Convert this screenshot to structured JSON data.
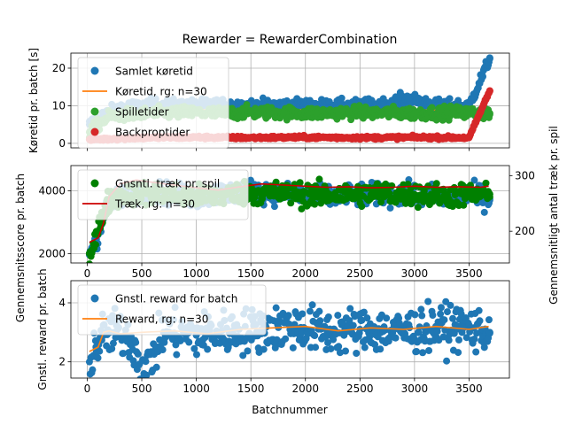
{
  "figure": {
    "suptitle": "Rewarder = RewarderCombination",
    "xlabel": "Batchnummer"
  },
  "chart_data": [
    {
      "type": "scatter",
      "ylabel": "Køretid pr. batch [s]",
      "xlim": [
        -150,
        3870
      ],
      "ylim": [
        -1.2,
        24
      ],
      "xticks": [
        0,
        500,
        1000,
        1500,
        2000,
        2500,
        3000,
        3500
      ],
      "yticks": [
        0,
        10,
        20
      ],
      "legend_position": "upper-left",
      "series": [
        {
          "name": "Samlet køretid",
          "kind": "scatter",
          "color": "#1f77b4",
          "x": [
            20,
            150,
            300,
            600,
            900,
            1200,
            1500,
            1800,
            2100,
            2400,
            2700,
            2950,
            3200,
            3500,
            3690
          ],
          "y": [
            5.0,
            7.5,
            9.5,
            10.2,
            10.0,
            10.3,
            10.0,
            10.2,
            10.1,
            10.0,
            10.3,
            12.0,
            10.1,
            10.0,
            22.5
          ]
        },
        {
          "name": "Køretid, rg: n=30",
          "kind": "line",
          "color": "#ff7f0e",
          "x": [
            20,
            100,
            200,
            300,
            500,
            1000,
            1500,
            2000,
            2500,
            3000,
            3500,
            3680
          ],
          "y": [
            4.0,
            6.0,
            8.0,
            8.5,
            8.8,
            8.9,
            8.8,
            8.9,
            8.8,
            8.9,
            8.8,
            8.9
          ]
        },
        {
          "name": "Spilletider",
          "kind": "scatter",
          "color": "#2ca02c",
          "x": [
            20,
            100,
            200,
            300,
            600,
            900,
            1200,
            1500,
            1800,
            2100,
            2400,
            2700,
            3000,
            3300,
            3600,
            3690
          ],
          "y": [
            3.0,
            5.0,
            7.0,
            7.5,
            8.0,
            8.2,
            8.0,
            8.3,
            8.1,
            8.0,
            8.2,
            8.1,
            8.0,
            8.2,
            8.1,
            8.0
          ]
        },
        {
          "name": "Backproptider",
          "kind": "scatter",
          "color": "#d62728",
          "x": [
            20,
            500,
            1000,
            1500,
            2000,
            2500,
            3000,
            3500,
            3690
          ],
          "y": [
            1.0,
            1.5,
            1.6,
            1.5,
            1.6,
            1.5,
            1.6,
            1.5,
            14.0
          ]
        }
      ]
    },
    {
      "type": "scatter",
      "ylabel": "Gennemsnitsscore pr. batch",
      "ylabel_right": "Gennemsnitligt antal træk pr. spil",
      "xlim": [
        -150,
        3870
      ],
      "ylim": [
        1700,
        4800
      ],
      "yticks": [
        2000,
        4000
      ],
      "ylim_right": [
        143,
        318
      ],
      "yticks_right": [
        200,
        300
      ],
      "legend_position": "upper-left",
      "series": [
        {
          "name": "",
          "kind": "scatter",
          "axis": "left",
          "color": "#1f77b4",
          "x": [
            20,
            60,
            100,
            150,
            200,
            300,
            500,
            800,
            1000,
            1200,
            1500,
            1800,
            2100,
            2400,
            2700,
            3000,
            3300,
            3600,
            3690
          ],
          "y": [
            2000,
            2300,
            2600,
            3200,
            3500,
            3800,
            4000,
            3900,
            3800,
            3900,
            4000,
            3900,
            3800,
            3850,
            3900,
            3850,
            3800,
            3850,
            3700
          ]
        },
        {
          "name": "Gnsntl. træk pr. spil",
          "kind": "scatter",
          "axis": "right",
          "color": "#008000",
          "x": [
            20,
            60,
            100,
            150,
            200,
            300,
            500,
            800,
            1000,
            1200,
            1500,
            1800,
            2100,
            2400,
            2700,
            3000,
            3300,
            3600,
            3690
          ],
          "y": [
            160,
            175,
            200,
            235,
            255,
            265,
            270,
            265,
            262,
            265,
            270,
            268,
            265,
            266,
            268,
            266,
            264,
            266,
            262
          ]
        },
        {
          "name": "Træk, rg: n=30",
          "kind": "line",
          "axis": "right",
          "color": "#cc0000",
          "x": [
            20,
            100,
            150,
            200,
            300,
            450,
            600,
            800,
            1000,
            1200,
            1400,
            1600,
            1800,
            2000,
            2200,
            2400,
            2600,
            2800,
            3000,
            3200,
            3400,
            3600,
            3680
          ],
          "y": [
            180,
            188,
            215,
            262,
            285,
            292,
            288,
            283,
            278,
            274,
            280,
            285,
            283,
            281,
            279,
            280,
            278,
            279,
            281,
            279,
            280,
            279,
            281
          ]
        }
      ]
    },
    {
      "type": "scatter",
      "ylabel": "Gnstl. reward pr. batch",
      "xlim": [
        -150,
        3870
      ],
      "ylim": [
        1.45,
        4.75
      ],
      "xticks": [
        0,
        500,
        1000,
        1500,
        2000,
        2500,
        3000,
        3500
      ],
      "yticks": [
        2,
        4
      ],
      "legend_position": "upper-left",
      "series": [
        {
          "name": "Gnstl. reward for batch",
          "kind": "scatter",
          "color": "#1f77b4",
          "x": [
            20,
            80,
            150,
            250,
            400,
            520,
            700,
            1000,
            1300,
            1600,
            1900,
            2200,
            2500,
            2800,
            3100,
            3400,
            3690
          ],
          "y": [
            2.0,
            2.5,
            2.9,
            3.0,
            2.8,
            1.6,
            3.0,
            2.9,
            3.0,
            3.1,
            3.2,
            3.0,
            3.1,
            3.0,
            3.1,
            3.2,
            3.0
          ]
        },
        {
          "name": "Reward, rg: n=30",
          "kind": "line",
          "color": "#ff7f0e",
          "x": [
            20,
            100,
            150,
            200,
            300,
            500,
            800,
            1100,
            1400,
            1700,
            2000,
            2300,
            2600,
            2900,
            3200,
            3500,
            3680
          ],
          "y": [
            2.35,
            2.5,
            3.0,
            3.05,
            2.95,
            3.0,
            3.05,
            2.95,
            3.1,
            3.15,
            3.2,
            3.05,
            3.15,
            3.1,
            3.2,
            3.1,
            3.2
          ]
        }
      ]
    }
  ]
}
